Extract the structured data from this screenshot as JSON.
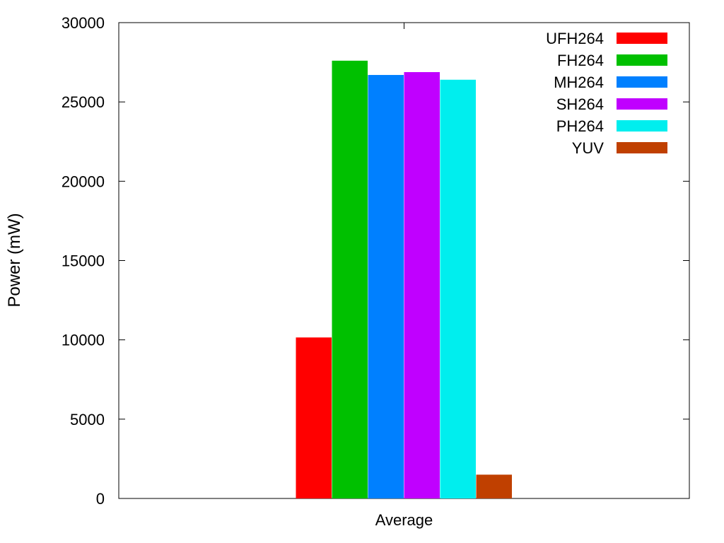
{
  "chart_data": {
    "type": "bar",
    "title": "",
    "xlabel": "",
    "ylabel": "Power (mW)",
    "categories": [
      "Average"
    ],
    "ylim": [
      0,
      30000
    ],
    "yticks": [
      0,
      5000,
      10000,
      15000,
      20000,
      25000,
      30000
    ],
    "grid": false,
    "legend_position": "top-right",
    "series": [
      {
        "name": "UFH264",
        "color": "#ff0000",
        "values": [
          10150
        ]
      },
      {
        "name": "FH264",
        "color": "#00c000",
        "values": [
          27600
        ]
      },
      {
        "name": "MH264",
        "color": "#0080ff",
        "values": [
          26700
        ]
      },
      {
        "name": "SH264",
        "color": "#c000ff",
        "values": [
          26880
        ]
      },
      {
        "name": "PH264",
        "color": "#00eeee",
        "values": [
          26400
        ]
      },
      {
        "name": "YUV",
        "color": "#c04000",
        "values": [
          1500
        ]
      }
    ]
  }
}
